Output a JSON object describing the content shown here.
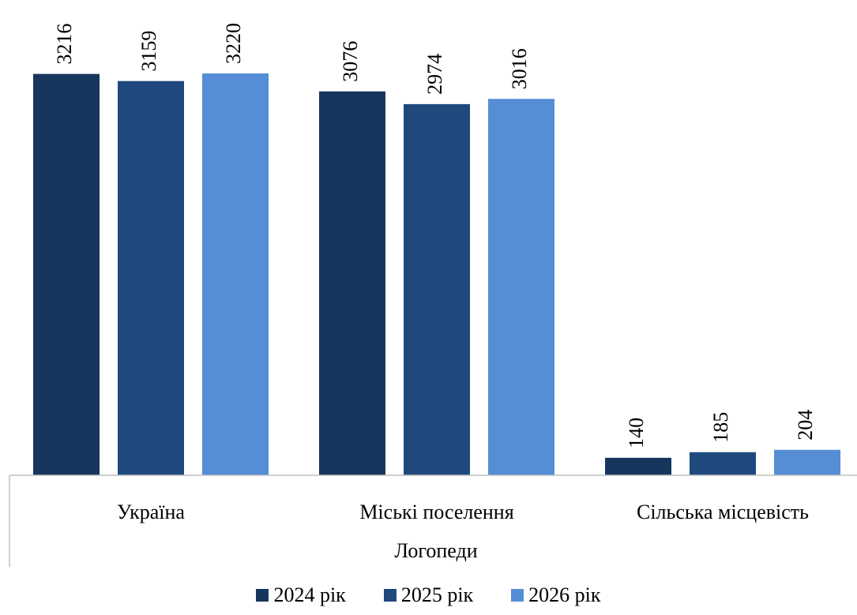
{
  "chart_data": {
    "type": "bar",
    "categories": [
      "Україна",
      "Міські поселення",
      "Сільська місцевість"
    ],
    "group_label": "Логопеди",
    "series": [
      {
        "name": "2024 рік",
        "color": "#17365d",
        "values": [
          3216,
          3076,
          140
        ]
      },
      {
        "name": "2025 рік",
        "color": "#1f497d",
        "values": [
          3159,
          2974,
          185
        ]
      },
      {
        "name": "2026 рік",
        "color": "#558ed5",
        "values": [
          3220,
          3016,
          204
        ]
      }
    ],
    "data_labels": true,
    "data_label_rotation": "vertical",
    "ylim": [
      0,
      3220
    ],
    "grid": false,
    "legend_position": "bottom"
  }
}
